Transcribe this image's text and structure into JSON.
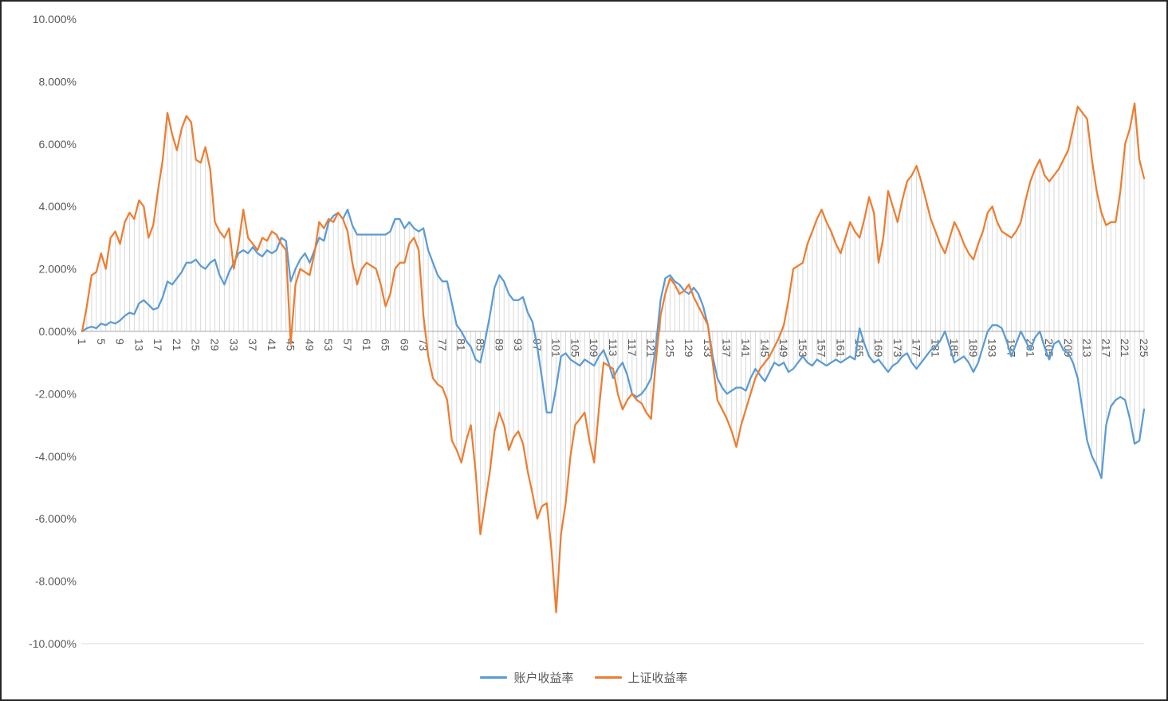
{
  "chart_data": {
    "type": "line",
    "title": "",
    "xlabel": "",
    "ylabel": "",
    "ylim": [
      -10,
      10
    ],
    "y_tick_step": 2,
    "y_tick_labels": [
      "10.000%",
      "8.000%",
      "6.000%",
      "4.000%",
      "2.000%",
      "0.000%",
      "-2.000%",
      "-4.000%",
      "-6.000%",
      "-8.000%",
      "-10.000%"
    ],
    "x_tick_step": 4,
    "x_tick_labels": [
      "1",
      "5",
      "9",
      "13",
      "17",
      "21",
      "25",
      "29",
      "33",
      "37",
      "41",
      "45",
      "49",
      "53",
      "57",
      "61",
      "65",
      "69",
      "73",
      "77",
      "81",
      "85",
      "89",
      "93",
      "97",
      "101",
      "105",
      "109",
      "113",
      "117",
      "121",
      "125",
      "129",
      "133",
      "137",
      "141",
      "145",
      "149",
      "153",
      "157",
      "161",
      "165",
      "169",
      "173",
      "177",
      "181",
      "185",
      "189",
      "193",
      "197",
      "201",
      "205",
      "209",
      "213",
      "217",
      "221",
      "225"
    ],
    "n_points": 225,
    "grid": "vertical-drop-lines",
    "legend_position": "bottom",
    "axis_color": "#a6a6a6",
    "dropline_color": "#d9d9d9",
    "label_color": "#595959",
    "series": [
      {
        "name": "账户收益率",
        "color": "#5B9BD5",
        "values": [
          0.0,
          0.1,
          0.15,
          0.1,
          0.25,
          0.2,
          0.3,
          0.25,
          0.35,
          0.5,
          0.6,
          0.55,
          0.9,
          1.0,
          0.85,
          0.7,
          0.75,
          1.1,
          1.6,
          1.5,
          1.7,
          1.9,
          2.2,
          2.2,
          2.3,
          2.1,
          2.0,
          2.2,
          2.3,
          1.8,
          1.5,
          1.9,
          2.2,
          2.5,
          2.6,
          2.5,
          2.7,
          2.5,
          2.4,
          2.6,
          2.5,
          2.6,
          3.0,
          2.9,
          1.6,
          2.0,
          2.3,
          2.5,
          2.2,
          2.6,
          3.0,
          2.9,
          3.5,
          3.7,
          3.8,
          3.6,
          3.9,
          3.4,
          3.1,
          3.1,
          3.1,
          3.1,
          3.1,
          3.1,
          3.1,
          3.2,
          3.6,
          3.6,
          3.3,
          3.5,
          3.3,
          3.2,
          3.3,
          2.6,
          2.2,
          1.8,
          1.6,
          1.6,
          0.9,
          0.2,
          0.0,
          -0.3,
          -0.5,
          -0.9,
          -1.0,
          -0.3,
          0.5,
          1.4,
          1.8,
          1.6,
          1.2,
          1.0,
          1.0,
          1.1,
          0.6,
          0.3,
          -0.5,
          -1.5,
          -2.6,
          -2.6,
          -1.8,
          -0.8,
          -0.7,
          -0.9,
          -1.0,
          -1.1,
          -0.9,
          -1.0,
          -1.1,
          -0.8,
          -0.6,
          -1.0,
          -1.5,
          -1.2,
          -1.0,
          -1.4,
          -2.0,
          -2.1,
          -2.0,
          -1.8,
          -1.5,
          -0.5,
          1.0,
          1.7,
          1.8,
          1.6,
          1.5,
          1.3,
          1.2,
          1.4,
          1.2,
          0.8,
          0.2,
          -0.8,
          -1.5,
          -1.8,
          -2.0,
          -1.9,
          -1.8,
          -1.8,
          -1.9,
          -1.5,
          -1.2,
          -1.4,
          -1.6,
          -1.3,
          -1.0,
          -1.1,
          -1.0,
          -1.3,
          -1.2,
          -1.0,
          -0.8,
          -1.0,
          -1.1,
          -0.9,
          -1.0,
          -1.1,
          -1.0,
          -0.9,
          -1.0,
          -0.9,
          -0.8,
          -0.9,
          0.1,
          -0.4,
          -0.8,
          -1.0,
          -0.9,
          -1.1,
          -1.3,
          -1.1,
          -1.0,
          -0.8,
          -0.7,
          -1.0,
          -1.2,
          -1.0,
          -0.8,
          -0.6,
          -0.5,
          -0.3,
          0.0,
          -0.5,
          -1.0,
          -0.9,
          -0.8,
          -1.0,
          -1.3,
          -1.0,
          -0.5,
          0.0,
          0.2,
          0.2,
          0.1,
          -0.3,
          -0.8,
          -0.4,
          0.0,
          -0.3,
          -0.6,
          -0.2,
          0.0,
          -0.5,
          -0.9,
          -0.4,
          -0.3,
          -0.6,
          -0.7,
          -1.0,
          -1.5,
          -2.5,
          -3.5,
          -4.0,
          -4.3,
          -4.7,
          -3.0,
          -2.4,
          -2.2,
          -2.1,
          -2.2,
          -2.8,
          -3.6,
          -3.5,
          -2.5
        ]
      },
      {
        "name": "上证收益率",
        "color": "#ED7D31",
        "values": [
          0.0,
          0.8,
          1.8,
          1.9,
          2.5,
          2.0,
          3.0,
          3.2,
          2.8,
          3.5,
          3.8,
          3.6,
          4.2,
          4.0,
          3.0,
          3.4,
          4.5,
          5.5,
          7.0,
          6.3,
          5.8,
          6.5,
          6.9,
          6.7,
          5.5,
          5.4,
          5.9,
          5.2,
          3.5,
          3.2,
          3.0,
          3.3,
          2.0,
          2.8,
          3.9,
          3.0,
          2.8,
          2.6,
          3.0,
          2.9,
          3.2,
          3.1,
          2.8,
          2.6,
          -0.4,
          1.5,
          2.0,
          1.9,
          1.8,
          2.5,
          3.5,
          3.3,
          3.6,
          3.5,
          3.8,
          3.6,
          3.2,
          2.2,
          1.5,
          2.0,
          2.2,
          2.1,
          2.0,
          1.5,
          0.8,
          1.2,
          2.0,
          2.2,
          2.2,
          2.8,
          3.0,
          2.6,
          0.5,
          -0.8,
          -1.5,
          -1.7,
          -1.8,
          -2.2,
          -3.5,
          -3.8,
          -4.2,
          -3.5,
          -3.0,
          -4.5,
          -6.5,
          -5.5,
          -4.5,
          -3.2,
          -2.6,
          -3.0,
          -3.8,
          -3.4,
          -3.2,
          -3.6,
          -4.5,
          -5.2,
          -6.0,
          -5.6,
          -5.5,
          -7.0,
          -9.0,
          -6.5,
          -5.5,
          -4.0,
          -3.0,
          -2.8,
          -2.6,
          -3.5,
          -4.2,
          -2.5,
          -1.0,
          -1.1,
          -1.2,
          -2.0,
          -2.5,
          -2.2,
          -2.0,
          -2.2,
          -2.3,
          -2.6,
          -2.8,
          -1.0,
          0.5,
          1.2,
          1.7,
          1.5,
          1.2,
          1.3,
          1.5,
          1.1,
          0.8,
          0.5,
          0.2,
          -1.0,
          -2.2,
          -2.5,
          -2.8,
          -3.2,
          -3.7,
          -3.0,
          -2.5,
          -2.0,
          -1.5,
          -1.2,
          -1.0,
          -0.8,
          -0.5,
          -0.2,
          0.2,
          1.0,
          2.0,
          2.1,
          2.2,
          2.8,
          3.2,
          3.6,
          3.9,
          3.5,
          3.2,
          2.8,
          2.5,
          3.0,
          3.5,
          3.2,
          3.0,
          3.6,
          4.3,
          3.8,
          2.2,
          3.0,
          4.5,
          4.0,
          3.5,
          4.2,
          4.8,
          5.0,
          5.3,
          4.8,
          4.2,
          3.6,
          3.2,
          2.8,
          2.5,
          3.0,
          3.5,
          3.2,
          2.8,
          2.5,
          2.3,
          2.8,
          3.2,
          3.8,
          4.0,
          3.5,
          3.2,
          3.1,
          3.0,
          3.2,
          3.5,
          4.2,
          4.8,
          5.2,
          5.5,
          5.0,
          4.8,
          5.0,
          5.2,
          5.5,
          5.8,
          6.5,
          7.2,
          7.0,
          6.8,
          5.5,
          4.5,
          3.8,
          3.4,
          3.5,
          3.5,
          4.5,
          6.0,
          6.5,
          7.3,
          5.5,
          4.9
        ]
      }
    ]
  },
  "legend": {
    "items": [
      {
        "label": "账户收益率",
        "color": "#5B9BD5"
      },
      {
        "label": "上证收益率",
        "color": "#ED7D31"
      }
    ]
  }
}
